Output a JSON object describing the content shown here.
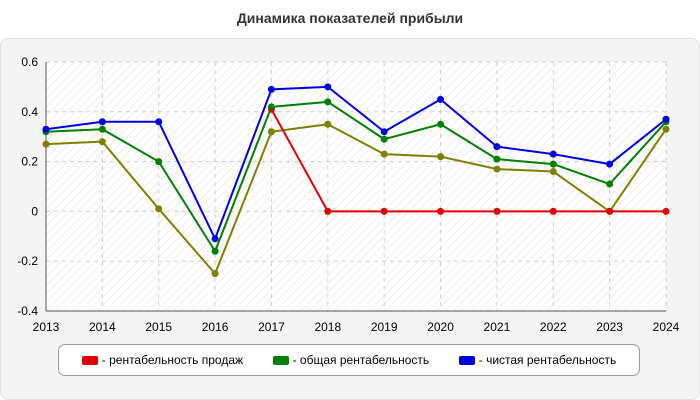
{
  "chart_data": {
    "type": "line",
    "title": "Динамика показателей прибыли",
    "xlabel": "",
    "ylabel": "",
    "x": [
      "2013",
      "2014",
      "2015",
      "2016",
      "2017",
      "2018",
      "2019",
      "2020",
      "2021",
      "2022",
      "2023",
      "2024"
    ],
    "ylim": [
      -0.4,
      0.6
    ],
    "yticks": [
      -0.4,
      -0.2,
      0,
      0.2,
      0.4,
      0.6
    ],
    "ytick_labels": [
      "-0.4",
      "-0.2",
      "0",
      "0.2",
      "0.4",
      "0.6"
    ],
    "grid": true,
    "legend_position": "bottom",
    "series": [
      {
        "key": "olive",
        "legend": false,
        "color": "#808000",
        "values": [
          0.27,
          0.28,
          0.01,
          -0.25,
          0.32,
          0.35,
          0.23,
          0.22,
          0.17,
          0.16,
          0.0,
          0.33
        ]
      },
      {
        "key": "sales",
        "legend": true,
        "name": "- рентабельность продаж",
        "color": "#e00000",
        "values": [
          null,
          null,
          null,
          null,
          0.41,
          0.0,
          0.0,
          0.0,
          0.0,
          0.0,
          0.0,
          0.0
        ]
      },
      {
        "key": "general",
        "legend": true,
        "name": "- общая рентабельность",
        "color": "#008000",
        "values": [
          0.32,
          0.33,
          0.2,
          -0.16,
          0.42,
          0.44,
          0.29,
          0.35,
          0.21,
          0.19,
          0.11,
          0.36
        ]
      },
      {
        "key": "net",
        "legend": true,
        "name": "- чистая рентабельность",
        "color": "#0000e0",
        "values": [
          0.33,
          0.36,
          0.36,
          -0.11,
          0.49,
          0.5,
          0.32,
          0.45,
          0.26,
          0.23,
          0.19,
          0.37
        ]
      }
    ]
  }
}
